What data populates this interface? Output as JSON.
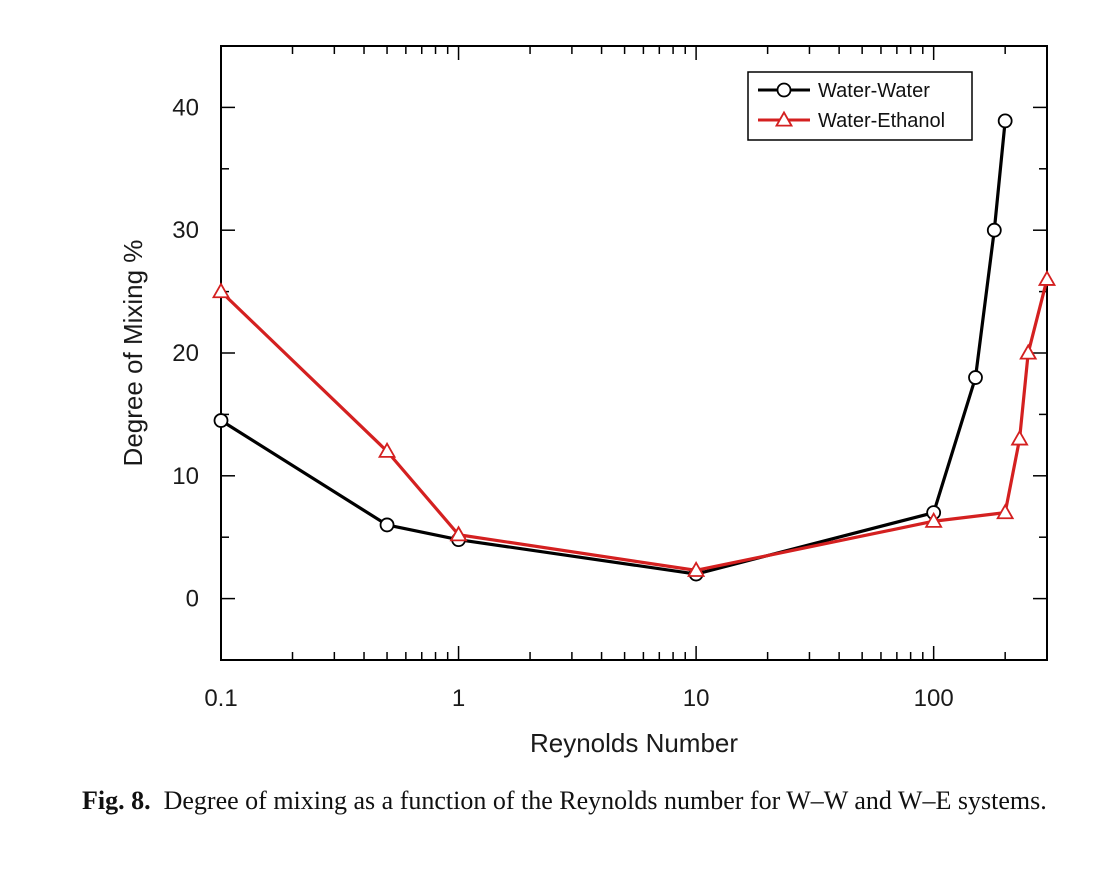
{
  "chart_data": {
    "type": "line",
    "xlabel": "Reynolds Number",
    "ylabel": "Degree of Mixing %",
    "xscale": "log",
    "xlim": [
      0.1,
      300
    ],
    "ylim": [
      -5,
      45
    ],
    "xticks": [
      0.1,
      1,
      10,
      100
    ],
    "xtick_labels": [
      "0.1",
      "1",
      "10",
      "100"
    ],
    "yticks": [
      0,
      10,
      20,
      30,
      40
    ],
    "ytick_labels": [
      "0",
      "10",
      "20",
      "30",
      "40"
    ],
    "grid": false,
    "legend": "top-right",
    "series": [
      {
        "name": "Water-Water",
        "color": "#000000",
        "marker": "circle",
        "x": [
          0.1,
          0.5,
          1,
          10,
          100,
          150,
          180,
          200
        ],
        "y": [
          14.5,
          6.0,
          4.8,
          2.0,
          7.0,
          18.0,
          30.0,
          38.9
        ]
      },
      {
        "name": "Water-Ethanol",
        "color": "#d42020",
        "marker": "triangle",
        "x": [
          0.1,
          0.5,
          1,
          10,
          100,
          200,
          230,
          250,
          300
        ],
        "y": [
          25.0,
          12.0,
          5.2,
          2.3,
          6.3,
          7.0,
          13.0,
          20.0,
          26.0
        ]
      }
    ]
  },
  "caption": {
    "label": "Fig. 8.",
    "text": "Degree of mixing as a function of the Reynolds number for W–W and W–E systems."
  }
}
